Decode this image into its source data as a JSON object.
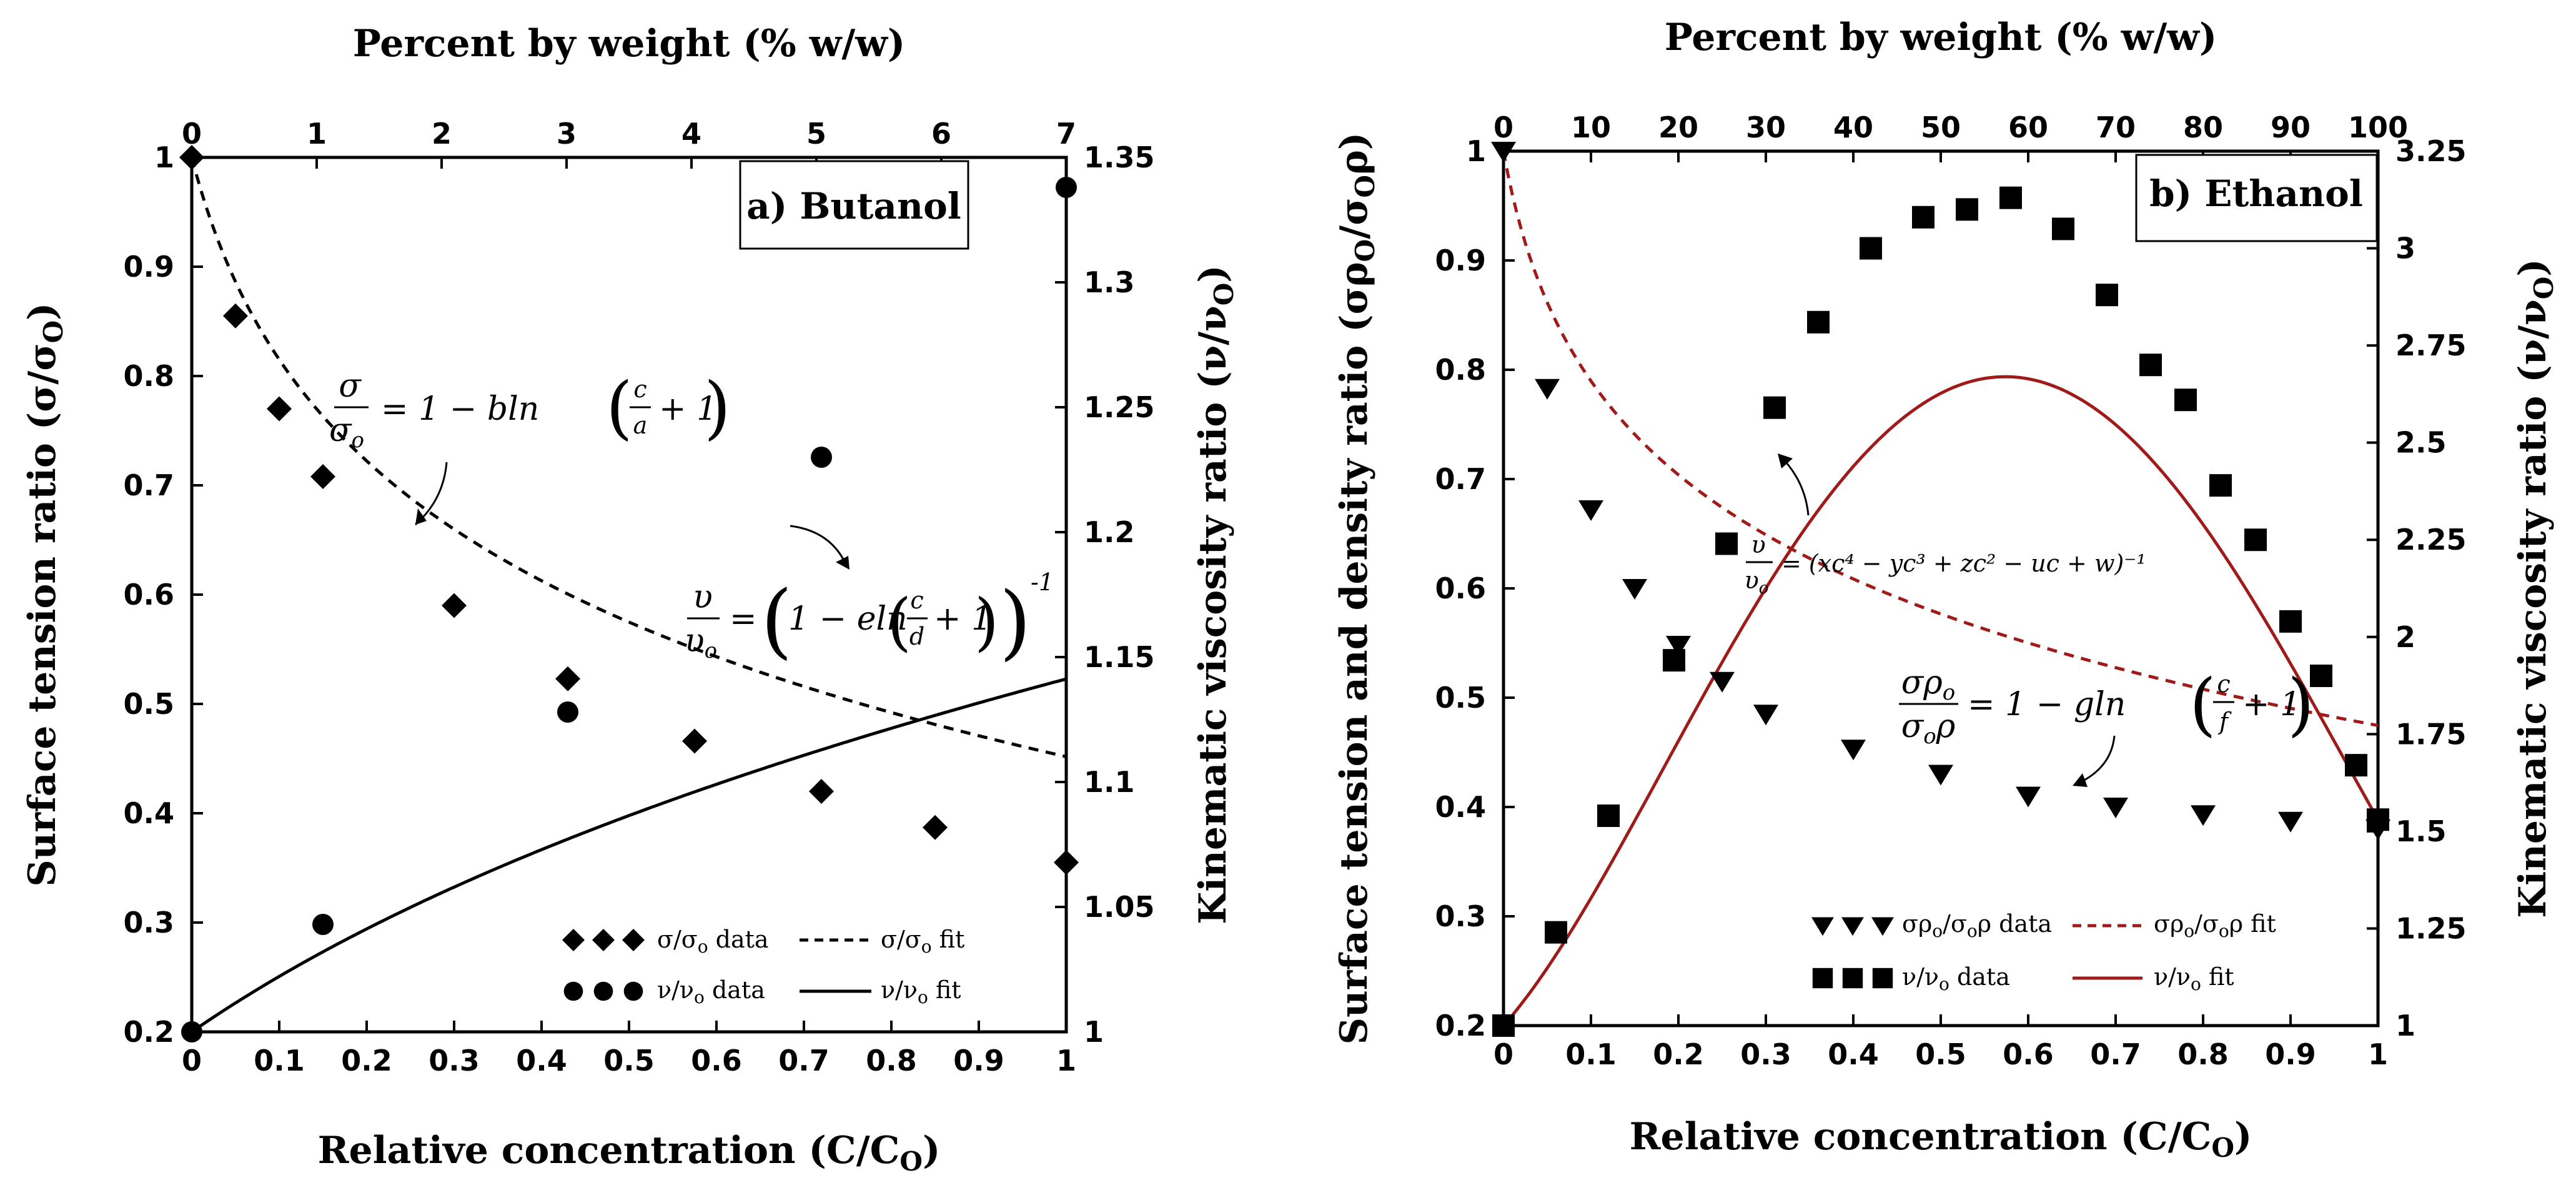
{
  "chart_data": [
    {
      "type": "line",
      "panel_label": "a) Butanol",
      "xlabel": "Relative concentration (C/C",
      "xlabel_sub": "O",
      "xlabel_close": ")",
      "x2label": "Percent by weight (% w/w)",
      "ylabel": "Surface tension ratio (σ/σ",
      "ylabel_sub": "O",
      "ylabel_close": ")",
      "y2label": "Kinematic viscosity ratio (ν/ν",
      "y2label_sub": "O",
      "y2label_close": ")",
      "xlim": [
        0,
        1
      ],
      "ylim": [
        0.2,
        1
      ],
      "y2lim": [
        1,
        1.35
      ],
      "x2lim": [
        0,
        7
      ],
      "xticks": [
        "0",
        "0.1",
        "0.2",
        "0.3",
        "0.4",
        "0.5",
        "0.6",
        "0.7",
        "0.8",
        "0.9",
        "1"
      ],
      "yticks": [
        "0.2",
        "0.3",
        "0.4",
        "0.5",
        "0.6",
        "0.7",
        "0.8",
        "0.9",
        "1"
      ],
      "y2ticks": [
        "1",
        "1.05",
        "1.1",
        "1.15",
        "1.2",
        "1.25",
        "1.3",
        "1.35"
      ],
      "x2ticks": [
        "0",
        "1",
        "2",
        "3",
        "4",
        "5",
        "6",
        "7"
      ],
      "series": [
        {
          "name": "σ/σo data",
          "axis": "left",
          "marker": "diamond",
          "x": [
            0,
            0.05,
            0.1,
            0.15,
            0.3,
            0.43,
            0.575,
            0.72,
            0.85,
            1
          ],
          "y": [
            1.0,
            0.855,
            0.77,
            0.708,
            0.59,
            0.523,
            0.466,
            0.42,
            0.387,
            0.355
          ]
        },
        {
          "name": "ν/νo data",
          "axis": "right",
          "marker": "circle",
          "x": [
            0,
            0.15,
            0.43,
            0.72,
            1
          ],
          "y": [
            1.0,
            1.043,
            1.128,
            1.23,
            1.338
          ]
        }
      ],
      "fits": [
        {
          "name": "σ/σo fit",
          "axis": "left",
          "style": "dashed",
          "color": "#000000",
          "formula": "1 - b ln(c/a + 1)"
        },
        {
          "name": "ν/νo fit",
          "axis": "right",
          "style": "solid",
          "color": "#000000",
          "formula": "(1 - e ln(c/d + 1))^-1"
        }
      ],
      "legend": {
        "row1_data": "σ/σ",
        "row1_data_sub": "o",
        "row1_data_tail": " data",
        "row1_fit": "σ/σ",
        "row1_fit_sub": "o",
        "row1_fit_tail": " fit",
        "row2_data": "ν/ν",
        "row2_data_sub": "o",
        "row2_data_tail": " data",
        "row2_fit": "ν/ν",
        "row2_fit_sub": "o",
        "row2_fit_tail": " fit"
      },
      "annotations": {
        "eq1_lhs_num": "σ",
        "eq1_lhs_den": "σ",
        "eq1_lhs_den_sub": "o",
        "eq1_rhs": "=  1 − bln",
        "eq1_frac_num": "c",
        "eq1_frac_den": "a",
        "eq1_tail": "+ 1",
        "eq2_lhs_num": "υ",
        "eq2_lhs_den": "υ",
        "eq2_lhs_den_sub": "o",
        "eq2_rhs": "=",
        "eq2_inner": "1 − eln",
        "eq2_frac_num": "c",
        "eq2_frac_den": "d",
        "eq2_tail": "+ 1",
        "eq2_exp": "-1"
      }
    },
    {
      "type": "line",
      "panel_label": "b) Ethanol",
      "xlabel": "Relative concentration (C/C",
      "xlabel_sub": "O",
      "xlabel_close": ")",
      "x2label": "Percent by weight (% w/w)",
      "ylabel": "Surface tension and density ratio (σρ",
      "ylabel_sub": "O",
      "ylabel_mid": "/σ",
      "ylabel_sub2": "O",
      "ylabel_close": "ρ)",
      "y2label": "Kinematic viscosity ratio (ν/ν",
      "y2label_sub": "O",
      "y2label_close": ")",
      "xlim": [
        0,
        1
      ],
      "ylim": [
        0.2,
        1
      ],
      "y2lim": [
        1,
        3.25
      ],
      "x2lim": [
        0,
        100
      ],
      "xticks": [
        "0",
        "0.1",
        "0.2",
        "0.3",
        "0.4",
        "0.5",
        "0.6",
        "0.7",
        "0.8",
        "0.9",
        "1"
      ],
      "yticks": [
        "0.2",
        "0.3",
        "0.4",
        "0.5",
        "0.6",
        "0.7",
        "0.8",
        "0.9",
        "1"
      ],
      "y2ticks": [
        "1",
        "1.25",
        "1.5",
        "1.75",
        "2",
        "2.25",
        "2.5",
        "2.75",
        "3",
        "3.25"
      ],
      "x2ticks": [
        "0",
        "10",
        "20",
        "30",
        "40",
        "50",
        "60",
        "70",
        "80",
        "90",
        "100"
      ],
      "series": [
        {
          "name": "σρo/σoρ data",
          "axis": "left",
          "marker": "triangle-down",
          "color": "#000000",
          "x": [
            0,
            0.05,
            0.1,
            0.15,
            0.2,
            0.25,
            0.3,
            0.4,
            0.5,
            0.6,
            0.7,
            0.8,
            0.9,
            1
          ],
          "y": [
            1.0,
            0.783,
            0.672,
            0.6,
            0.548,
            0.515,
            0.485,
            0.453,
            0.43,
            0.41,
            0.4,
            0.393,
            0.387,
            0.38
          ]
        },
        {
          "name": "ν/νo data",
          "axis": "right",
          "marker": "square",
          "color": "#000000",
          "x": [
            0,
            0.06,
            0.12,
            0.195,
            0.255,
            0.31,
            0.36,
            0.42,
            0.48,
            0.53,
            0.58,
            0.64,
            0.69,
            0.74,
            0.78,
            0.82,
            0.86,
            0.9,
            0.935,
            0.975,
            1
          ],
          "y": [
            1.0,
            1.24,
            1.54,
            1.94,
            2.24,
            2.59,
            2.81,
            3.0,
            3.08,
            3.1,
            3.13,
            3.05,
            2.88,
            2.7,
            2.61,
            2.39,
            2.25,
            2.04,
            1.9,
            1.67,
            1.53
          ]
        }
      ],
      "fits": [
        {
          "name": "σρo/σoρ fit",
          "axis": "left",
          "style": "dashed",
          "color": "#a01a1a",
          "formula": "1 - g ln(c/f + 1)"
        },
        {
          "name": "ν/νo fit",
          "axis": "right",
          "style": "solid",
          "color": "#a01a1a",
          "formula": "(xc^4 - yc^3 + zc^2 - uc + w)^-1"
        }
      ],
      "legend": {
        "row1_data": "σρ",
        "row1_data_sub": "o",
        "row1_data_tail": "/σ",
        "row1_data_sub2": "o",
        "row1_data_tail2": "ρ data",
        "row1_fit": "σρ",
        "row1_fit_sub": "o",
        "row1_fit_tail": "/σ",
        "row1_fit_sub2": "o",
        "row1_fit_tail2": "ρ fit",
        "row2_data": "ν/ν",
        "row2_data_sub": "o",
        "row2_data_tail": " data",
        "row2_fit": "ν/ν",
        "row2_fit_sub": "o",
        "row2_fit_tail": " fit"
      },
      "annotations": {
        "eq1_lhs_num": "υ",
        "eq1_lhs_den": "υ",
        "eq1_lhs_den_sub": "o",
        "eq1_rhs": "= (xc⁴ − yc³ + zc² − uc + w)⁻¹",
        "eq2_lhs_num": "σρ",
        "eq2_lhs_num_sub": "o",
        "eq2_lhs_den": "σ",
        "eq2_lhs_den_sub": "o",
        "eq2_lhs_den_tail": "ρ",
        "eq2_rhs": "=  1 − gln",
        "eq2_frac_num": "c",
        "eq2_frac_den": "f",
        "eq2_tail": "+ 1"
      }
    }
  ]
}
